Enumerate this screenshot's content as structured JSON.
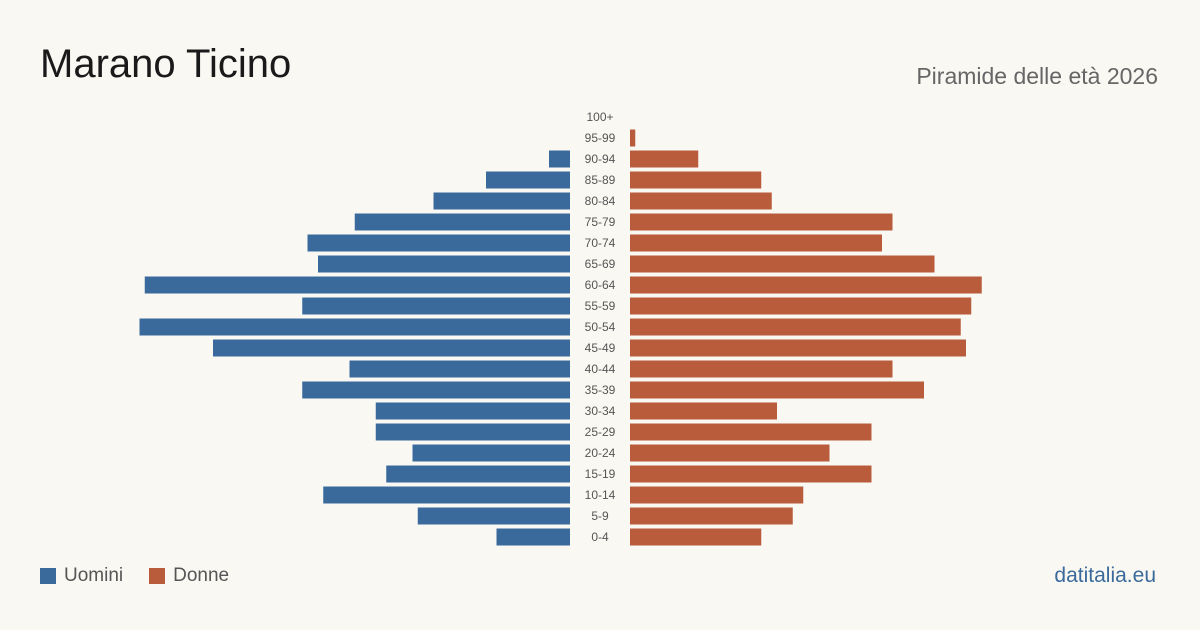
{
  "title": "Marano Ticino",
  "subtitle": "Piramide delle età 2026",
  "source": "datitalia.eu",
  "colors": {
    "male": "#3a6a9b",
    "female": "#b85c3c",
    "background": "#faf8f3"
  },
  "chart_data": {
    "type": "bar",
    "orientation": "horizontal-pyramid",
    "categories": [
      "100+",
      "95-99",
      "90-94",
      "85-89",
      "80-84",
      "75-79",
      "70-74",
      "65-69",
      "60-64",
      "55-59",
      "50-54",
      "45-49",
      "40-44",
      "35-39",
      "30-34",
      "25-29",
      "20-24",
      "15-19",
      "10-14",
      "5-9",
      "0-4"
    ],
    "series": [
      {
        "name": "Uomini",
        "values": [
          0,
          0,
          4,
          16,
          26,
          41,
          50,
          48,
          81,
          51,
          82,
          68,
          42,
          51,
          37,
          37,
          30,
          35,
          47,
          29,
          14
        ]
      },
      {
        "name": "Donne",
        "values": [
          0,
          1,
          13,
          25,
          27,
          50,
          48,
          58,
          67,
          65,
          63,
          64,
          50,
          56,
          28,
          46,
          38,
          46,
          33,
          31,
          25
        ]
      }
    ],
    "legend": "bottom-left",
    "grid": false
  }
}
